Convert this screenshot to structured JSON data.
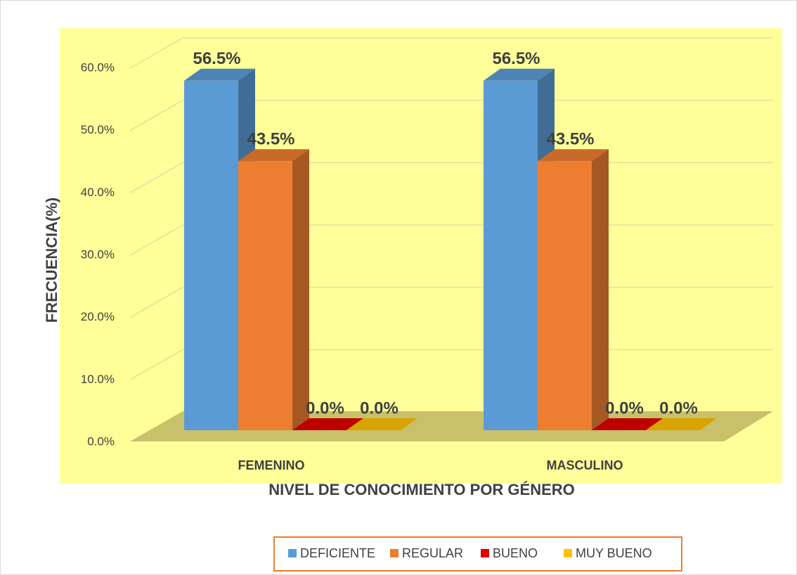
{
  "chart_data": {
    "type": "bar3d",
    "y_label": "FRECUENCIA(%)",
    "x_label": "NIVEL DE CONOCIMIENTO POR GÉNERO",
    "categories": [
      "FEMENINO",
      "MASCULINO"
    ],
    "series": [
      {
        "name": "DEFICIENTE",
        "color": "#5b9bd5",
        "values": [
          56.5,
          56.5
        ],
        "value_labels": [
          "56.5%",
          "56.5%"
        ]
      },
      {
        "name": "REGULAR",
        "color": "#ed7d31",
        "values": [
          43.5,
          43.5
        ],
        "value_labels": [
          "43.5%",
          "43.5%"
        ]
      },
      {
        "name": "BUENO",
        "color": "#e00000",
        "values": [
          0,
          0
        ],
        "value_labels": [
          "0.0%",
          "0.0%"
        ]
      },
      {
        "name": "MUY BUENO",
        "color": "#ffc000",
        "values": [
          0,
          0
        ],
        "value_labels": [
          "0.0%",
          "0.0%"
        ]
      }
    ],
    "ylim": [
      0,
      60
    ],
    "yticks": [
      {
        "value": 0,
        "label": "0.0%"
      },
      {
        "value": 10,
        "label": "10.0%"
      },
      {
        "value": 20,
        "label": "20.0%"
      },
      {
        "value": 30,
        "label": "30.0%"
      },
      {
        "value": 40,
        "label": "40.0%"
      },
      {
        "value": 50,
        "label": "50.0%"
      },
      {
        "value": 60,
        "label": "60.0%"
      }
    ],
    "grid": true,
    "legend": "bottom"
  }
}
